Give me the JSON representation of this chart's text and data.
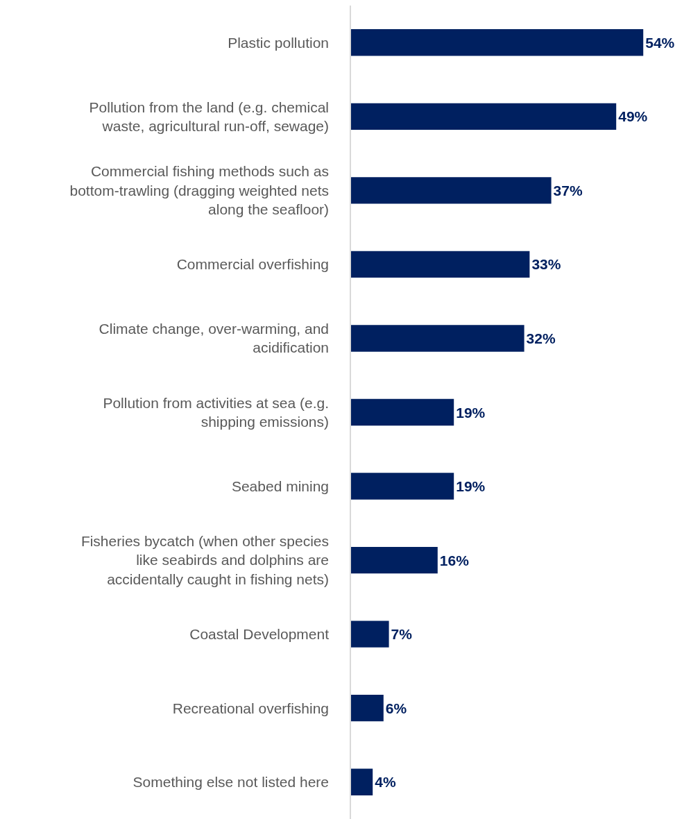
{
  "chart_data": {
    "type": "bar",
    "orientation": "horizontal",
    "categories": [
      "Plastic pollution",
      "Pollution from the land (e.g. chemical waste, agricultural run-off, sewage)",
      "Commercial fishing methods such as bottom-trawling (dragging weighted nets along the seafloor)",
      "Commercial overfishing",
      "Climate change, over-warming, and acidification",
      "Pollution from activities at sea (e.g. shipping emissions)",
      "Seabed mining",
      "Fisheries bycatch (when other species like seabirds and dolphins are accidentally caught in fishing nets)",
      "Coastal Development",
      "Recreational overfishing",
      "Something else not listed here"
    ],
    "values": [
      54,
      49,
      37,
      33,
      32,
      19,
      19,
      16,
      7,
      6,
      4
    ],
    "value_labels": [
      "54%",
      "49%",
      "37%",
      "33%",
      "32%",
      "19%",
      "19%",
      "16%",
      "7%",
      "6%",
      "4%"
    ],
    "color": "#002060"
  }
}
